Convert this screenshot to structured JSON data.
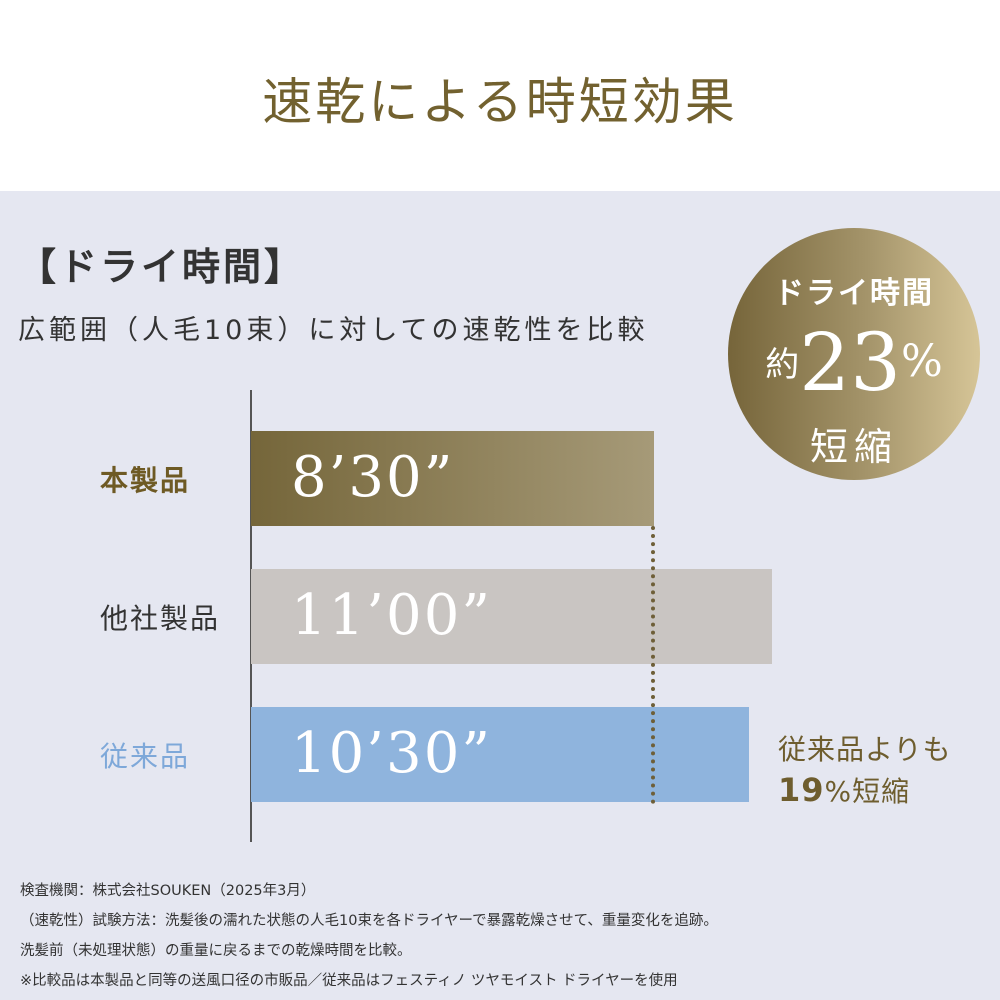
{
  "title": "速乾による時短効果",
  "heading": "【ドライ時間】",
  "subheading": "広範囲（人毛10束）に対しての速乾性を比較",
  "badge": {
    "line1": "ドライ時間",
    "prefix": "約",
    "value": "23",
    "unit": "%",
    "line3": "短縮"
  },
  "note": {
    "line1": "従来品よりも",
    "value": "19",
    "unit": "%",
    "suffix": "短縮"
  },
  "chart_data": {
    "type": "bar",
    "orientation": "horizontal",
    "unit": "minutes",
    "categories": [
      "本製品",
      "他社製品",
      "従来品"
    ],
    "values": [
      8.5,
      11,
      10.5
    ],
    "value_labels": [
      "8’30”",
      "11’00”",
      "10’30”"
    ],
    "colors": [
      "#75663a",
      "#c9c5c2",
      "#8fb4dd"
    ],
    "label_colors": [
      "#6e5a24",
      "#333333",
      "#7ea8d9"
    ]
  },
  "footnotes": [
    "検査機関：株式会社SOUKEN（2025年3月）",
    "（速乾性）試験方法：洗髪後の濡れた状態の人毛10束を各ドライヤーで暴露乾燥させて、重量変化を追跡。",
    "洗髪前（未処理状態）の重量に戻るまでの乾燥時間を比較。",
    "※比較品は本製品と同等の送風口径の市販品／従来品はフェスティノ ツヤモイスト ドライヤーを使用"
  ]
}
